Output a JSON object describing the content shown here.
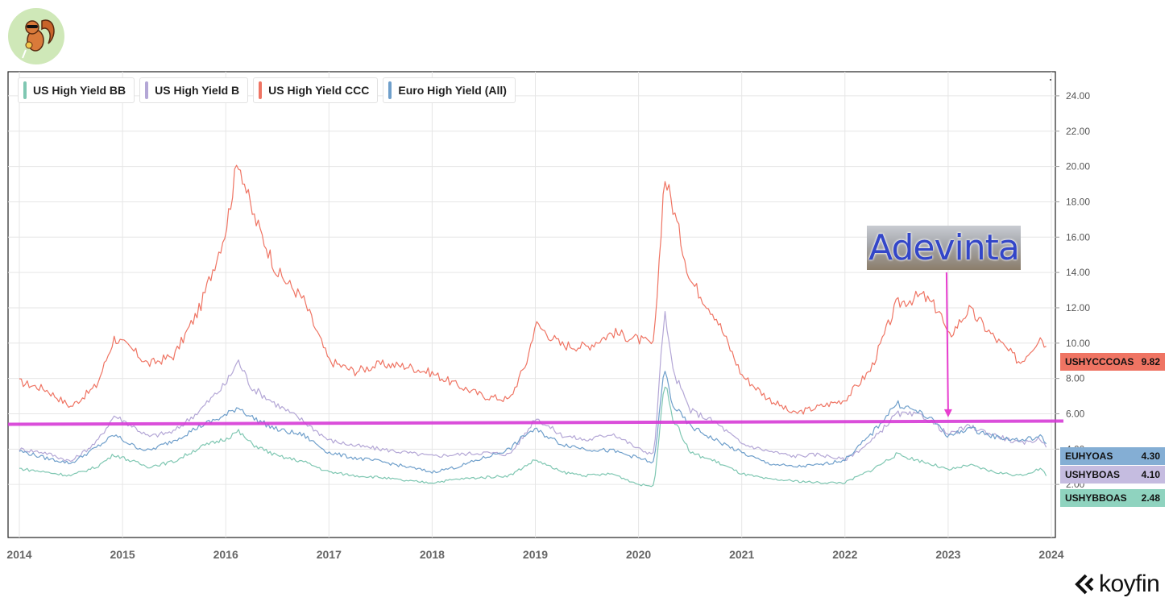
{
  "chart_data": {
    "type": "line",
    "title": "",
    "xlabel": "",
    "ylabel": "",
    "xlim": [
      2014.0,
      2024.0
    ],
    "ylim": [
      0,
      25
    ],
    "x_ticks": [
      "2014",
      "2015",
      "2016",
      "2017",
      "2018",
      "2019",
      "2020",
      "2021",
      "2022",
      "2023",
      "2024"
    ],
    "y_ticks": [
      "2.00",
      "4.00",
      "6.00",
      "8.00",
      "10.00",
      "12.00",
      "14.00",
      "16.00",
      "18.00",
      "20.00",
      "22.00",
      "24.00"
    ],
    "grid": true,
    "legend_position": "top-left",
    "series": [
      {
        "name": "US High Yield CCC",
        "code": "USHYCCCOAS",
        "last": "9.82",
        "color": "#ef7463",
        "points": [
          [
            2014.0,
            7.8
          ],
          [
            2014.25,
            7.4
          ],
          [
            2014.5,
            6.4
          ],
          [
            2014.75,
            7.6
          ],
          [
            2014.92,
            10.3
          ],
          [
            2015.1,
            9.6
          ],
          [
            2015.25,
            8.8
          ],
          [
            2015.5,
            9.3
          ],
          [
            2015.75,
            12.0
          ],
          [
            2016.0,
            16.4
          ],
          [
            2016.12,
            20.5
          ],
          [
            2016.25,
            17.5
          ],
          [
            2016.5,
            14.0
          ],
          [
            2016.75,
            12.5
          ],
          [
            2017.0,
            9.0
          ],
          [
            2017.25,
            8.4
          ],
          [
            2017.5,
            8.8
          ],
          [
            2017.75,
            8.7
          ],
          [
            2018.0,
            8.3
          ],
          [
            2018.25,
            7.6
          ],
          [
            2018.5,
            7.0
          ],
          [
            2018.75,
            6.8
          ],
          [
            2018.92,
            9.0
          ],
          [
            2019.0,
            11.1
          ],
          [
            2019.25,
            9.9
          ],
          [
            2019.5,
            9.8
          ],
          [
            2019.75,
            10.6
          ],
          [
            2020.0,
            10.2
          ],
          [
            2020.15,
            9.9
          ],
          [
            2020.25,
            19.5
          ],
          [
            2020.33,
            17.8
          ],
          [
            2020.5,
            13.6
          ],
          [
            2020.75,
            11.5
          ],
          [
            2021.0,
            8.2
          ],
          [
            2021.25,
            6.9
          ],
          [
            2021.5,
            6.0
          ],
          [
            2021.75,
            6.4
          ],
          [
            2022.0,
            6.8
          ],
          [
            2022.25,
            8.5
          ],
          [
            2022.5,
            12.2
          ],
          [
            2022.75,
            12.7
          ],
          [
            2022.92,
            11.8
          ],
          [
            2023.0,
            10.3
          ],
          [
            2023.2,
            11.9
          ],
          [
            2023.45,
            10.3
          ],
          [
            2023.7,
            8.9
          ],
          [
            2023.9,
            10.4
          ],
          [
            2023.95,
            9.82
          ]
        ]
      },
      {
        "name": "US High Yield B",
        "code": "USHYBOAS",
        "last": "4.10",
        "color": "#b4a7d6",
        "points": [
          [
            2014.0,
            4.0
          ],
          [
            2014.25,
            3.8
          ],
          [
            2014.5,
            3.3
          ],
          [
            2014.75,
            4.4
          ],
          [
            2014.92,
            5.9
          ],
          [
            2015.1,
            5.3
          ],
          [
            2015.25,
            4.7
          ],
          [
            2015.5,
            5.0
          ],
          [
            2015.75,
            6.2
          ],
          [
            2016.0,
            7.7
          ],
          [
            2016.12,
            9.0
          ],
          [
            2016.25,
            7.5
          ],
          [
            2016.5,
            6.5
          ],
          [
            2016.75,
            5.6
          ],
          [
            2017.0,
            4.5
          ],
          [
            2017.25,
            4.2
          ],
          [
            2017.5,
            4.0
          ],
          [
            2017.75,
            3.8
          ],
          [
            2018.0,
            3.6
          ],
          [
            2018.25,
            3.7
          ],
          [
            2018.5,
            3.8
          ],
          [
            2018.75,
            3.7
          ],
          [
            2018.92,
            5.0
          ],
          [
            2019.0,
            5.8
          ],
          [
            2019.25,
            4.8
          ],
          [
            2019.5,
            4.5
          ],
          [
            2019.75,
            4.9
          ],
          [
            2020.0,
            4.0
          ],
          [
            2020.15,
            3.7
          ],
          [
            2020.25,
            11.8
          ],
          [
            2020.33,
            8.5
          ],
          [
            2020.5,
            6.2
          ],
          [
            2020.75,
            5.5
          ],
          [
            2021.0,
            4.3
          ],
          [
            2021.25,
            3.9
          ],
          [
            2021.5,
            3.6
          ],
          [
            2021.75,
            3.7
          ],
          [
            2022.0,
            3.4
          ],
          [
            2022.25,
            4.4
          ],
          [
            2022.5,
            6.0
          ],
          [
            2022.75,
            5.9
          ],
          [
            2022.92,
            5.2
          ],
          [
            2023.0,
            4.8
          ],
          [
            2023.2,
            5.3
          ],
          [
            2023.45,
            4.8
          ],
          [
            2023.7,
            4.3
          ],
          [
            2023.9,
            4.6
          ],
          [
            2023.95,
            4.1
          ]
        ]
      },
      {
        "name": "Euro High Yield (All)",
        "code": "EUHYOAS",
        "last": "4.30",
        "color": "#6f9fcb",
        "points": [
          [
            2014.0,
            3.9
          ],
          [
            2014.25,
            3.5
          ],
          [
            2014.5,
            3.2
          ],
          [
            2014.75,
            4.1
          ],
          [
            2014.92,
            4.8
          ],
          [
            2015.1,
            4.2
          ],
          [
            2015.25,
            3.9
          ],
          [
            2015.5,
            4.5
          ],
          [
            2015.75,
            5.3
          ],
          [
            2016.0,
            5.9
          ],
          [
            2016.12,
            6.4
          ],
          [
            2016.25,
            5.8
          ],
          [
            2016.5,
            5.1
          ],
          [
            2016.75,
            4.8
          ],
          [
            2017.0,
            3.8
          ],
          [
            2017.25,
            3.5
          ],
          [
            2017.5,
            3.3
          ],
          [
            2017.75,
            3.0
          ],
          [
            2018.0,
            2.7
          ],
          [
            2018.25,
            3.0
          ],
          [
            2018.5,
            3.5
          ],
          [
            2018.75,
            4.0
          ],
          [
            2018.92,
            4.9
          ],
          [
            2019.0,
            5.1
          ],
          [
            2019.25,
            4.3
          ],
          [
            2019.5,
            4.0
          ],
          [
            2019.75,
            3.9
          ],
          [
            2020.0,
            3.5
          ],
          [
            2020.15,
            3.2
          ],
          [
            2020.25,
            8.6
          ],
          [
            2020.33,
            6.5
          ],
          [
            2020.5,
            5.3
          ],
          [
            2020.75,
            4.5
          ],
          [
            2021.0,
            3.8
          ],
          [
            2021.25,
            3.2
          ],
          [
            2021.5,
            3.0
          ],
          [
            2021.75,
            3.1
          ],
          [
            2022.0,
            3.4
          ],
          [
            2022.25,
            4.8
          ],
          [
            2022.5,
            6.6
          ],
          [
            2022.75,
            6.0
          ],
          [
            2022.92,
            5.3
          ],
          [
            2023.0,
            4.7
          ],
          [
            2023.2,
            5.2
          ],
          [
            2023.45,
            4.7
          ],
          [
            2023.7,
            4.5
          ],
          [
            2023.9,
            4.7
          ],
          [
            2023.95,
            4.3
          ]
        ]
      },
      {
        "name": "US High Yield BB",
        "code": "USHYBBOAS",
        "last": "2.48",
        "color": "#7fc7b2",
        "points": [
          [
            2014.0,
            2.9
          ],
          [
            2014.25,
            2.7
          ],
          [
            2014.5,
            2.5
          ],
          [
            2014.75,
            3.0
          ],
          [
            2014.92,
            3.7
          ],
          [
            2015.1,
            3.3
          ],
          [
            2015.25,
            3.0
          ],
          [
            2015.5,
            3.3
          ],
          [
            2015.75,
            4.1
          ],
          [
            2016.0,
            4.6
          ],
          [
            2016.12,
            5.0
          ],
          [
            2016.25,
            4.3
          ],
          [
            2016.5,
            3.6
          ],
          [
            2016.75,
            3.3
          ],
          [
            2017.0,
            2.7
          ],
          [
            2017.25,
            2.5
          ],
          [
            2017.5,
            2.4
          ],
          [
            2017.75,
            2.2
          ],
          [
            2018.0,
            2.1
          ],
          [
            2018.25,
            2.3
          ],
          [
            2018.5,
            2.4
          ],
          [
            2018.75,
            2.5
          ],
          [
            2018.92,
            3.1
          ],
          [
            2019.0,
            3.4
          ],
          [
            2019.25,
            2.7
          ],
          [
            2019.5,
            2.5
          ],
          [
            2019.75,
            2.6
          ],
          [
            2020.0,
            2.0
          ],
          [
            2020.15,
            1.9
          ],
          [
            2020.25,
            7.9
          ],
          [
            2020.33,
            5.8
          ],
          [
            2020.5,
            3.8
          ],
          [
            2020.75,
            3.3
          ],
          [
            2021.0,
            2.6
          ],
          [
            2021.25,
            2.3
          ],
          [
            2021.5,
            2.2
          ],
          [
            2021.75,
            2.1
          ],
          [
            2022.0,
            2.1
          ],
          [
            2022.25,
            2.8
          ],
          [
            2022.5,
            3.7
          ],
          [
            2022.75,
            3.3
          ],
          [
            2022.92,
            3.0
          ],
          [
            2023.0,
            2.8
          ],
          [
            2023.2,
            3.1
          ],
          [
            2023.45,
            2.7
          ],
          [
            2023.7,
            2.5
          ],
          [
            2023.9,
            2.9
          ],
          [
            2023.95,
            2.48
          ]
        ]
      }
    ],
    "annotations": {
      "horizontal_line_value": 5.5,
      "horizontal_line_color": "#d63bd6",
      "arrow_color": "#e83ecf",
      "arrow_x": 2023.0,
      "arrow_tip_value": 5.8,
      "image_label": "Adevinta"
    }
  },
  "brand": {
    "name": "koyfin"
  }
}
